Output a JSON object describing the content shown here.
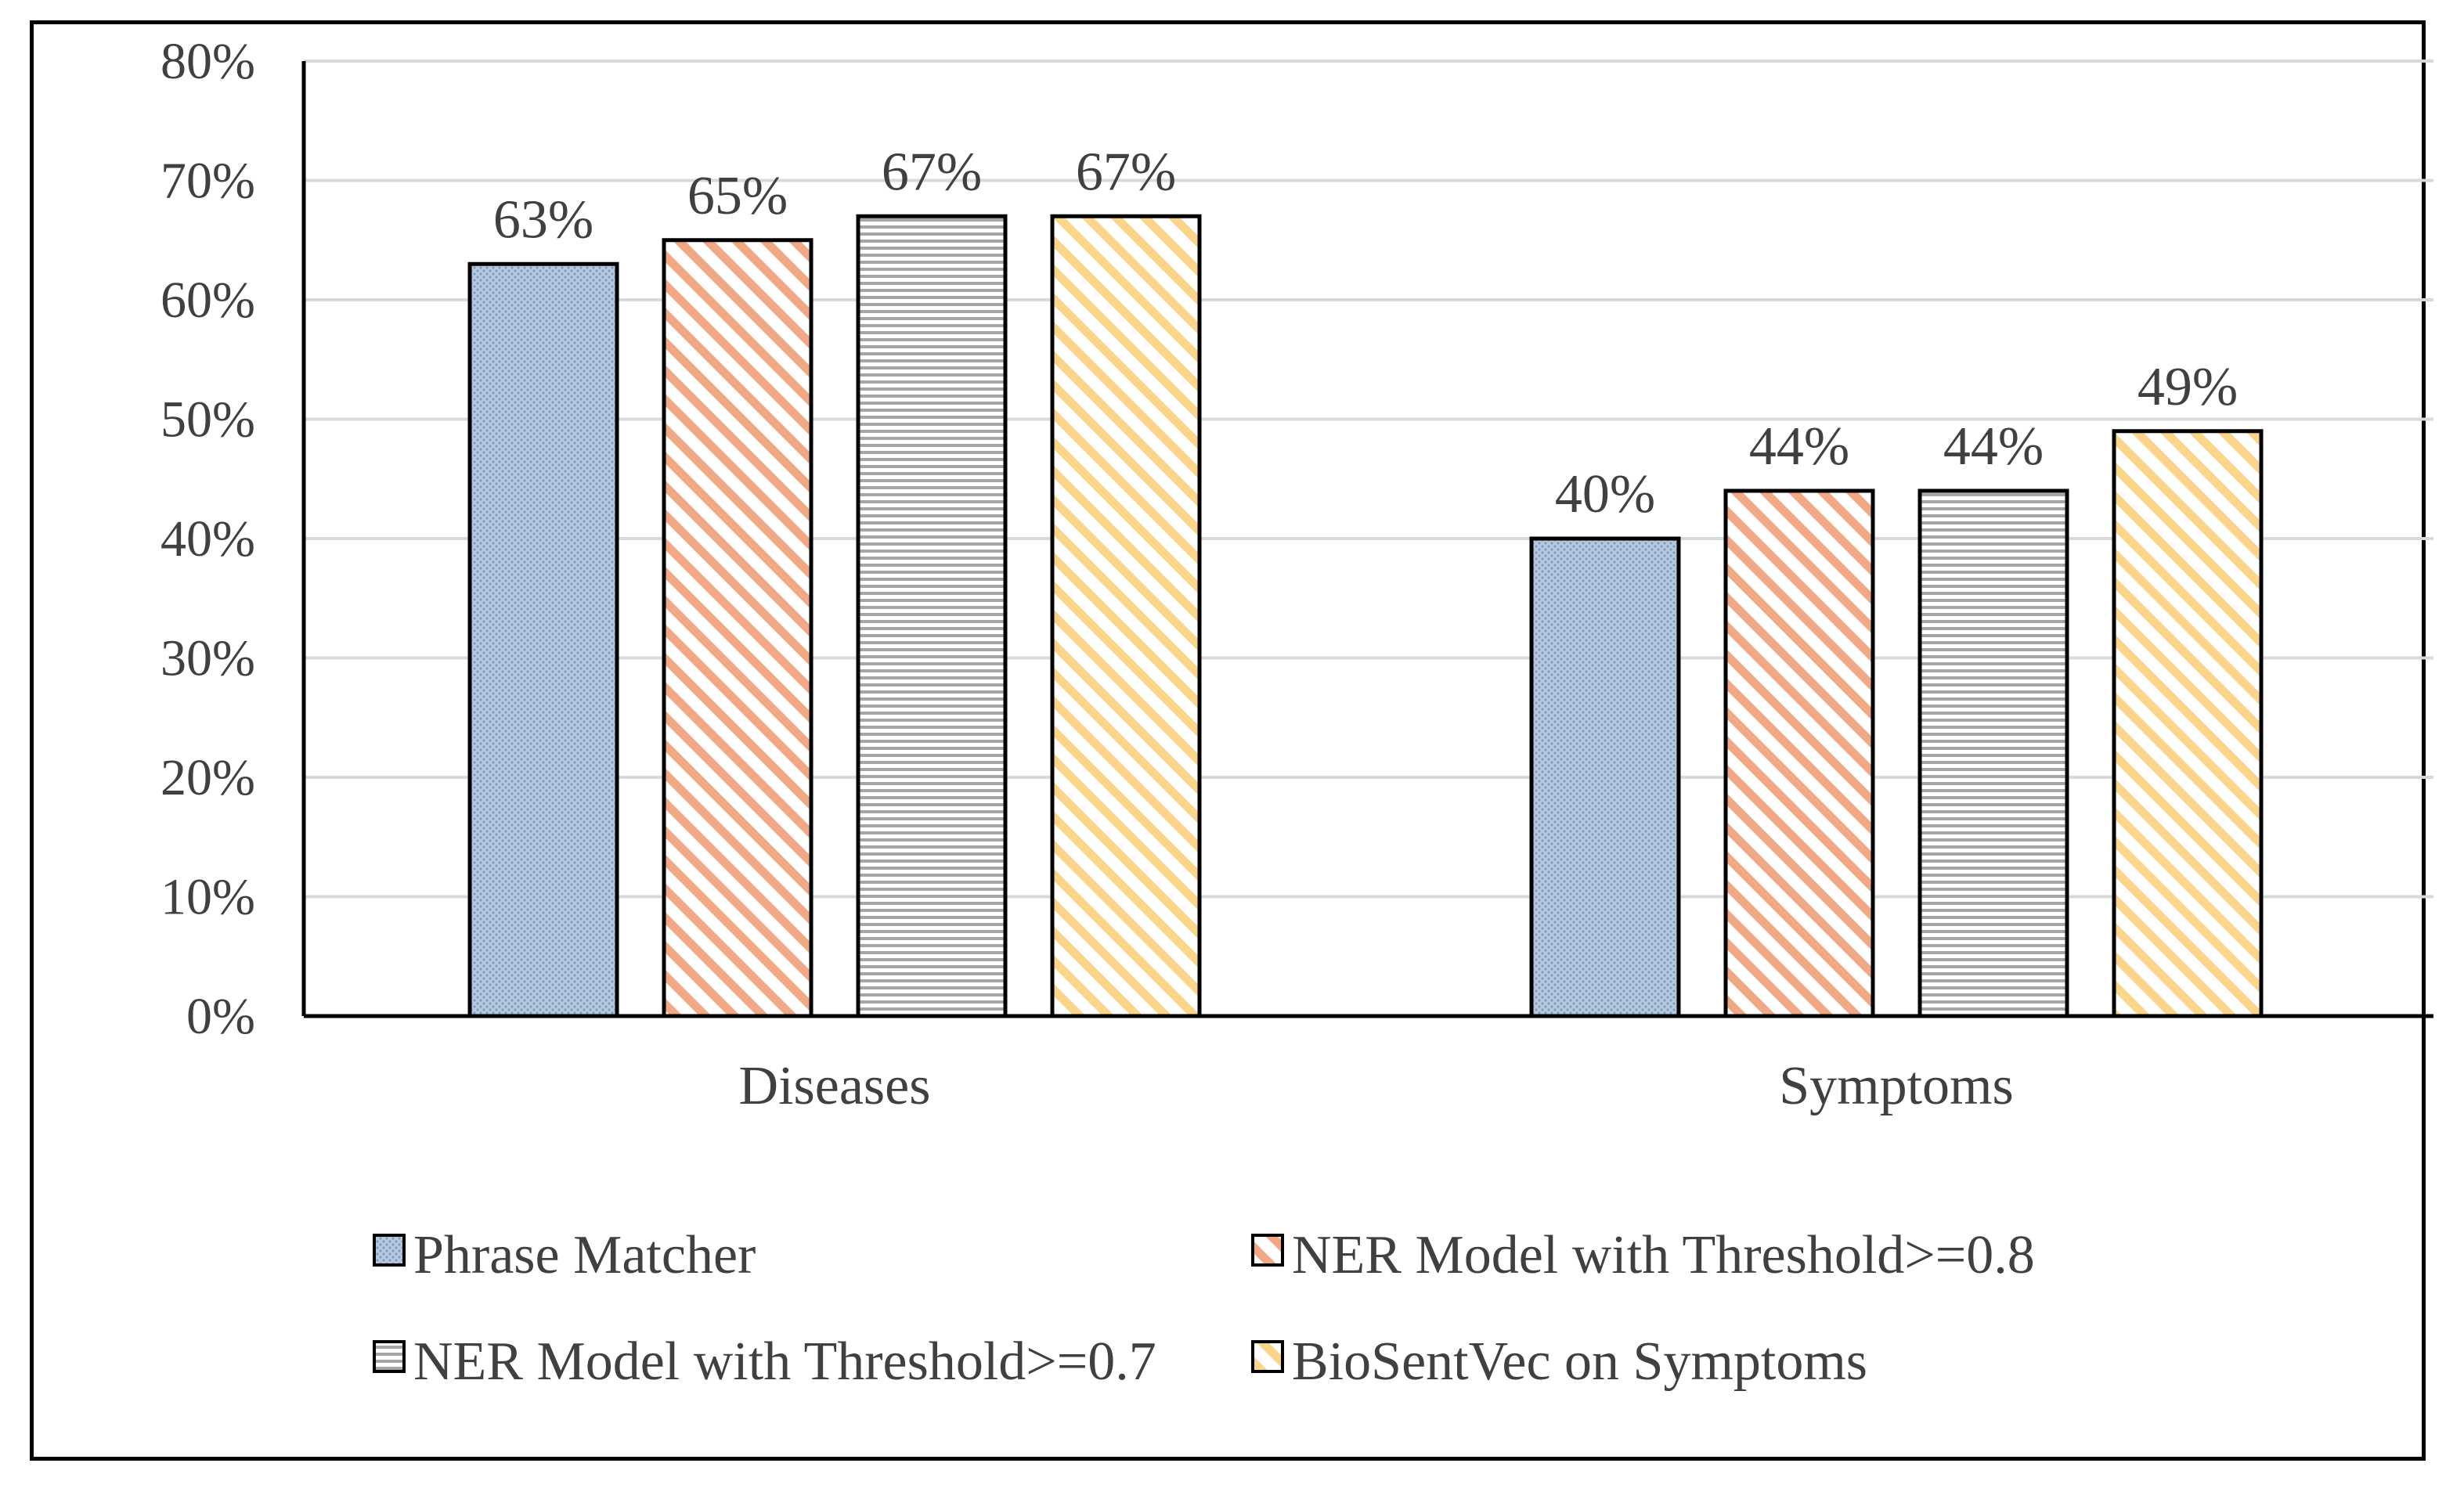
{
  "chart_data": {
    "type": "bar",
    "categories": [
      "Diseases",
      "Symptoms"
    ],
    "series": [
      {
        "name": "Phrase Matcher",
        "values": [
          63,
          40
        ],
        "labels": [
          "63%",
          "40%"
        ],
        "pattern": "dots",
        "color": "#9fb6d3"
      },
      {
        "name": "NER Model with Threshold>=0.8",
        "values": [
          65,
          44
        ],
        "labels": [
          "65%",
          "44%"
        ],
        "pattern": "diag-orange",
        "color": "#f0a885"
      },
      {
        "name": "NER Model with Threshold>=0.7",
        "values": [
          67,
          44
        ],
        "labels": [
          "67%",
          "44%"
        ],
        "pattern": "hlines",
        "color": "#a6a6a6"
      },
      {
        "name": "BioSentVec on Symptoms",
        "values": [
          67,
          49
        ],
        "labels": [
          "67%",
          "49%"
        ],
        "pattern": "diag-yellow",
        "color": "#fbd58a"
      }
    ],
    "ylim": [
      0,
      80
    ],
    "yticks": [
      0,
      10,
      20,
      30,
      40,
      50,
      60,
      70,
      80
    ],
    "ytick_labels": [
      "0%",
      "10%",
      "20%",
      "30%",
      "40%",
      "50%",
      "60%",
      "70%",
      "80%"
    ],
    "grid": true,
    "legend_position": "bottom",
    "title": "",
    "xlabel": "",
    "ylabel": ""
  }
}
